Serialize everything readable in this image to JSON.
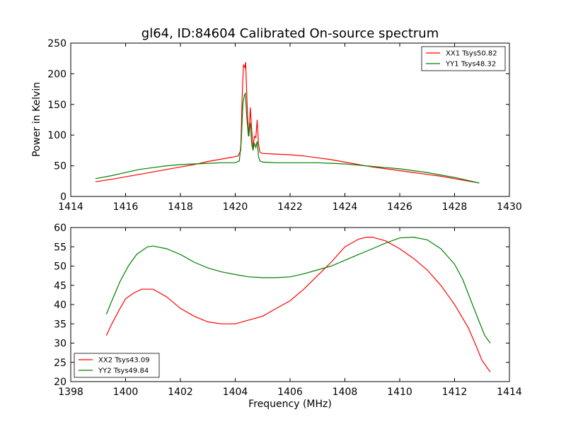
{
  "figure_title": "gl64, ID:84604 Calibrated On-source spectrum",
  "colors": {
    "xx": "#ff0000",
    "yy": "#008000",
    "axes": "#000000",
    "background": "#ffffff"
  },
  "chart_data": [
    {
      "type": "line",
      "title": "gl64, ID:84604 Calibrated On-source spectrum",
      "xlabel": "",
      "ylabel": "Power in Kelvin",
      "xlim": [
        1414,
        1430
      ],
      "ylim": [
        0,
        250
      ],
      "xticks": [
        1414,
        1416,
        1418,
        1420,
        1422,
        1424,
        1426,
        1428,
        1430
      ],
      "yticks": [
        0,
        50,
        100,
        150,
        200,
        250
      ],
      "grid": false,
      "legend_position": "top-right",
      "series": [
        {
          "name": "XX1 Tsys50.82",
          "color": "#ff0000",
          "points": [
            [
              1414.9,
              24.0
            ],
            [
              1415.5,
              28.0
            ],
            [
              1416.0,
              32.0
            ],
            [
              1416.5,
              36.0
            ],
            [
              1417.0,
              40.0
            ],
            [
              1417.5,
              44.0
            ],
            [
              1418.0,
              48.0
            ],
            [
              1418.5,
              52.0
            ],
            [
              1419.0,
              57.0
            ],
            [
              1419.5,
              61.0
            ],
            [
              1419.9,
              64.0
            ],
            [
              1420.1,
              66.0
            ],
            [
              1420.2,
              75.0
            ],
            [
              1420.25,
              160.0
            ],
            [
              1420.3,
              215.0
            ],
            [
              1420.35,
              210.0
            ],
            [
              1420.38,
              219.0
            ],
            [
              1420.45,
              130.0
            ],
            [
              1420.5,
              98.0
            ],
            [
              1420.55,
              145.0
            ],
            [
              1420.6,
              110.0
            ],
            [
              1420.65,
              80.0
            ],
            [
              1420.7,
              98.0
            ],
            [
              1420.75,
              96.0
            ],
            [
              1420.8,
              125.0
            ],
            [
              1420.85,
              85.0
            ],
            [
              1420.9,
              72.0
            ],
            [
              1421.0,
              70.0
            ],
            [
              1421.5,
              69.0
            ],
            [
              1422.0,
              68.0
            ],
            [
              1422.5,
              66.0
            ],
            [
              1423.0,
              63.0
            ],
            [
              1423.5,
              60.0
            ],
            [
              1424.0,
              56.0
            ],
            [
              1424.5,
              52.0
            ],
            [
              1425.0,
              48.0
            ],
            [
              1425.5,
              45.0
            ],
            [
              1426.0,
              42.0
            ],
            [
              1426.5,
              39.0
            ],
            [
              1427.0,
              36.0
            ],
            [
              1427.5,
              33.0
            ],
            [
              1428.0,
              29.0
            ],
            [
              1428.5,
              25.0
            ],
            [
              1428.9,
              22.0
            ]
          ]
        },
        {
          "name": "YY1 Tsys48.32",
          "color": "#008000",
          "points": [
            [
              1414.9,
              29.0
            ],
            [
              1415.5,
              34.0
            ],
            [
              1416.0,
              39.0
            ],
            [
              1416.5,
              44.0
            ],
            [
              1417.0,
              47.0
            ],
            [
              1417.5,
              50.0
            ],
            [
              1418.0,
              52.0
            ],
            [
              1418.5,
              53.0
            ],
            [
              1419.0,
              54.0
            ],
            [
              1419.5,
              55.0
            ],
            [
              1420.0,
              55.0
            ],
            [
              1420.15,
              58.0
            ],
            [
              1420.22,
              90.0
            ],
            [
              1420.28,
              150.0
            ],
            [
              1420.33,
              165.0
            ],
            [
              1420.37,
              168.0
            ],
            [
              1420.42,
              130.0
            ],
            [
              1420.48,
              98.0
            ],
            [
              1420.55,
              120.0
            ],
            [
              1420.6,
              85.0
            ],
            [
              1420.65,
              75.0
            ],
            [
              1420.7,
              87.0
            ],
            [
              1420.75,
              80.0
            ],
            [
              1420.8,
              90.0
            ],
            [
              1420.85,
              65.0
            ],
            [
              1420.9,
              58.0
            ],
            [
              1421.0,
              56.0
            ],
            [
              1421.5,
              55.0
            ],
            [
              1422.0,
              55.0
            ],
            [
              1422.5,
              55.0
            ],
            [
              1423.0,
              55.0
            ],
            [
              1423.5,
              54.0
            ],
            [
              1424.0,
              53.0
            ],
            [
              1424.5,
              51.0
            ],
            [
              1425.0,
              49.0
            ],
            [
              1425.5,
              47.0
            ],
            [
              1426.0,
              45.0
            ],
            [
              1426.5,
              42.0
            ],
            [
              1427.0,
              39.0
            ],
            [
              1427.5,
              35.0
            ],
            [
              1428.0,
              31.0
            ],
            [
              1428.5,
              26.0
            ],
            [
              1428.9,
              22.0
            ]
          ]
        }
      ]
    },
    {
      "type": "line",
      "title": "",
      "xlabel": "Frequency (MHz)",
      "ylabel": "",
      "xlim": [
        1398,
        1414
      ],
      "ylim": [
        20,
        60
      ],
      "xticks": [
        1398,
        1400,
        1402,
        1404,
        1406,
        1408,
        1410,
        1412,
        1414
      ],
      "yticks": [
        20,
        25,
        30,
        35,
        40,
        45,
        50,
        55,
        60
      ],
      "grid": false,
      "legend_position": "bottom-left",
      "series": [
        {
          "name": "XX2 Tsys43.09",
          "color": "#ff0000",
          "points": [
            [
              1399.3,
              32.0
            ],
            [
              1399.5,
              35.0
            ],
            [
              1399.8,
              39.0
            ],
            [
              1400.0,
              41.5
            ],
            [
              1400.3,
              43.0
            ],
            [
              1400.6,
              44.0
            ],
            [
              1401.0,
              44.0
            ],
            [
              1401.5,
              42.0
            ],
            [
              1402.0,
              39.0
            ],
            [
              1402.5,
              37.0
            ],
            [
              1403.0,
              35.5
            ],
            [
              1403.5,
              35.0
            ],
            [
              1404.0,
              35.0
            ],
            [
              1404.5,
              36.0
            ],
            [
              1405.0,
              37.0
            ],
            [
              1405.5,
              39.0
            ],
            [
              1406.0,
              41.0
            ],
            [
              1406.5,
              44.0
            ],
            [
              1407.0,
              47.5
            ],
            [
              1407.5,
              51.0
            ],
            [
              1408.0,
              55.0
            ],
            [
              1408.5,
              57.0
            ],
            [
              1408.8,
              57.5
            ],
            [
              1409.0,
              57.5
            ],
            [
              1409.5,
              56.5
            ],
            [
              1410.0,
              54.5
            ],
            [
              1410.5,
              52.0
            ],
            [
              1411.0,
              49.0
            ],
            [
              1411.5,
              45.0
            ],
            [
              1412.0,
              40.0
            ],
            [
              1412.5,
              34.0
            ],
            [
              1412.8,
              29.0
            ],
            [
              1413.0,
              25.5
            ],
            [
              1413.3,
              22.5
            ]
          ]
        },
        {
          "name": "YY2 Tsys49.84",
          "color": "#008000",
          "points": [
            [
              1399.3,
              37.5
            ],
            [
              1399.5,
              41.0
            ],
            [
              1399.8,
              46.0
            ],
            [
              1400.1,
              50.0
            ],
            [
              1400.4,
              53.0
            ],
            [
              1400.8,
              55.0
            ],
            [
              1401.0,
              55.2
            ],
            [
              1401.5,
              54.5
            ],
            [
              1402.0,
              53.0
            ],
            [
              1402.5,
              51.0
            ],
            [
              1403.0,
              49.5
            ],
            [
              1403.5,
              48.5
            ],
            [
              1404.0,
              47.8
            ],
            [
              1404.5,
              47.2
            ],
            [
              1405.0,
              47.0
            ],
            [
              1405.5,
              47.0
            ],
            [
              1406.0,
              47.2
            ],
            [
              1406.5,
              48.0
            ],
            [
              1407.0,
              49.0
            ],
            [
              1407.5,
              50.0
            ],
            [
              1408.0,
              51.5
            ],
            [
              1408.5,
              53.0
            ],
            [
              1409.0,
              54.5
            ],
            [
              1409.5,
              56.0
            ],
            [
              1410.0,
              57.3
            ],
            [
              1410.5,
              57.5
            ],
            [
              1411.0,
              56.8
            ],
            [
              1411.5,
              54.5
            ],
            [
              1412.0,
              50.5
            ],
            [
              1412.3,
              46.5
            ],
            [
              1412.6,
              41.0
            ],
            [
              1412.9,
              35.5
            ],
            [
              1413.1,
              32.0
            ],
            [
              1413.3,
              30.0
            ]
          ]
        }
      ]
    }
  ]
}
